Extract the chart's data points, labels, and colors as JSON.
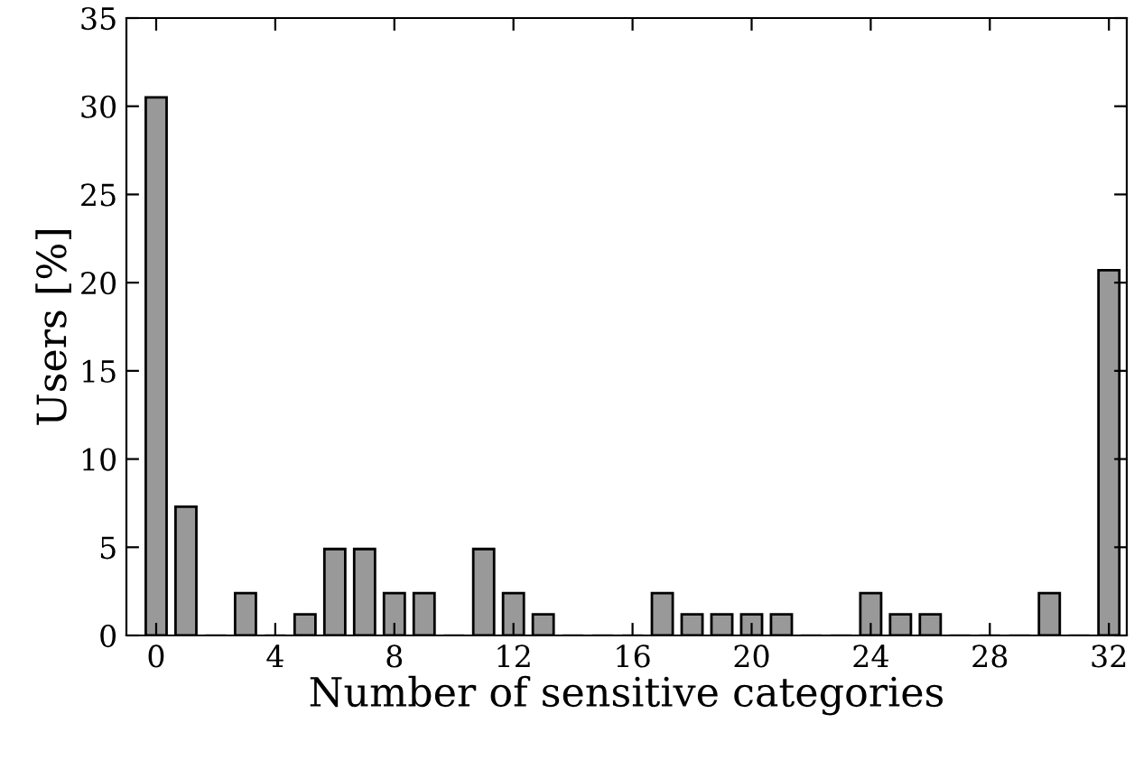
{
  "chart_data": {
    "type": "bar",
    "xlabel": "Number of sensitive categories",
    "ylabel": "Users [%]",
    "x": [
      0,
      1,
      2,
      3,
      4,
      5,
      6,
      7,
      8,
      9,
      10,
      11,
      12,
      13,
      14,
      15,
      16,
      17,
      18,
      19,
      20,
      21,
      22,
      23,
      24,
      25,
      26,
      27,
      28,
      29,
      30,
      31,
      32
    ],
    "values": [
      30.5,
      7.3,
      0,
      2.4,
      0,
      1.2,
      4.9,
      4.9,
      2.4,
      2.4,
      0,
      4.9,
      2.4,
      1.2,
      0,
      0,
      0,
      2.4,
      1.2,
      1.2,
      1.2,
      1.2,
      0,
      0,
      2.4,
      1.2,
      1.2,
      0,
      0,
      0,
      2.4,
      0,
      20.7
    ],
    "color": "#999999",
    "xlim": [
      -1,
      32.6
    ],
    "xticks": [
      0,
      4,
      8,
      12,
      16,
      20,
      24,
      28,
      32
    ],
    "ylim": [
      0,
      35
    ],
    "yticks": [
      0,
      5,
      10,
      15,
      20,
      25,
      30,
      35
    ],
    "grid": false,
    "legend": false
  }
}
